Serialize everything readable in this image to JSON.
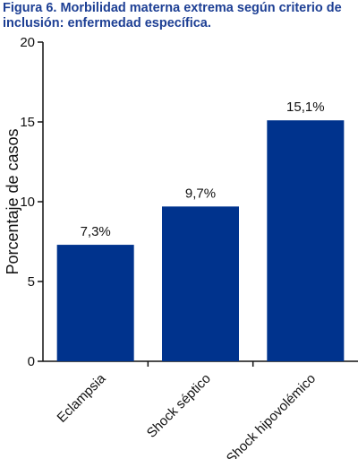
{
  "figure": {
    "title": "Figura 6. Morbilidad materna extrema según criterio de inclusión: enfermedad específica."
  },
  "chart_data": {
    "type": "bar",
    "title": "Figura 6. Morbilidad materna extrema según criterio de inclusión: enfermedad específica.",
    "categories": [
      "Eclampsia",
      "Shock séptico",
      "Shock hipovolémico"
    ],
    "values": [
      7.3,
      9.7,
      15.1
    ],
    "data_labels": [
      "7,3%",
      "9,7%",
      "15,1%"
    ],
    "xlabel": "",
    "ylabel": "Porcentaje de casos",
    "ylim": [
      0,
      20
    ],
    "yticks": [
      0,
      5,
      10,
      15,
      20
    ],
    "grid": false,
    "legend": "none",
    "bar_color": "#00338d"
  }
}
